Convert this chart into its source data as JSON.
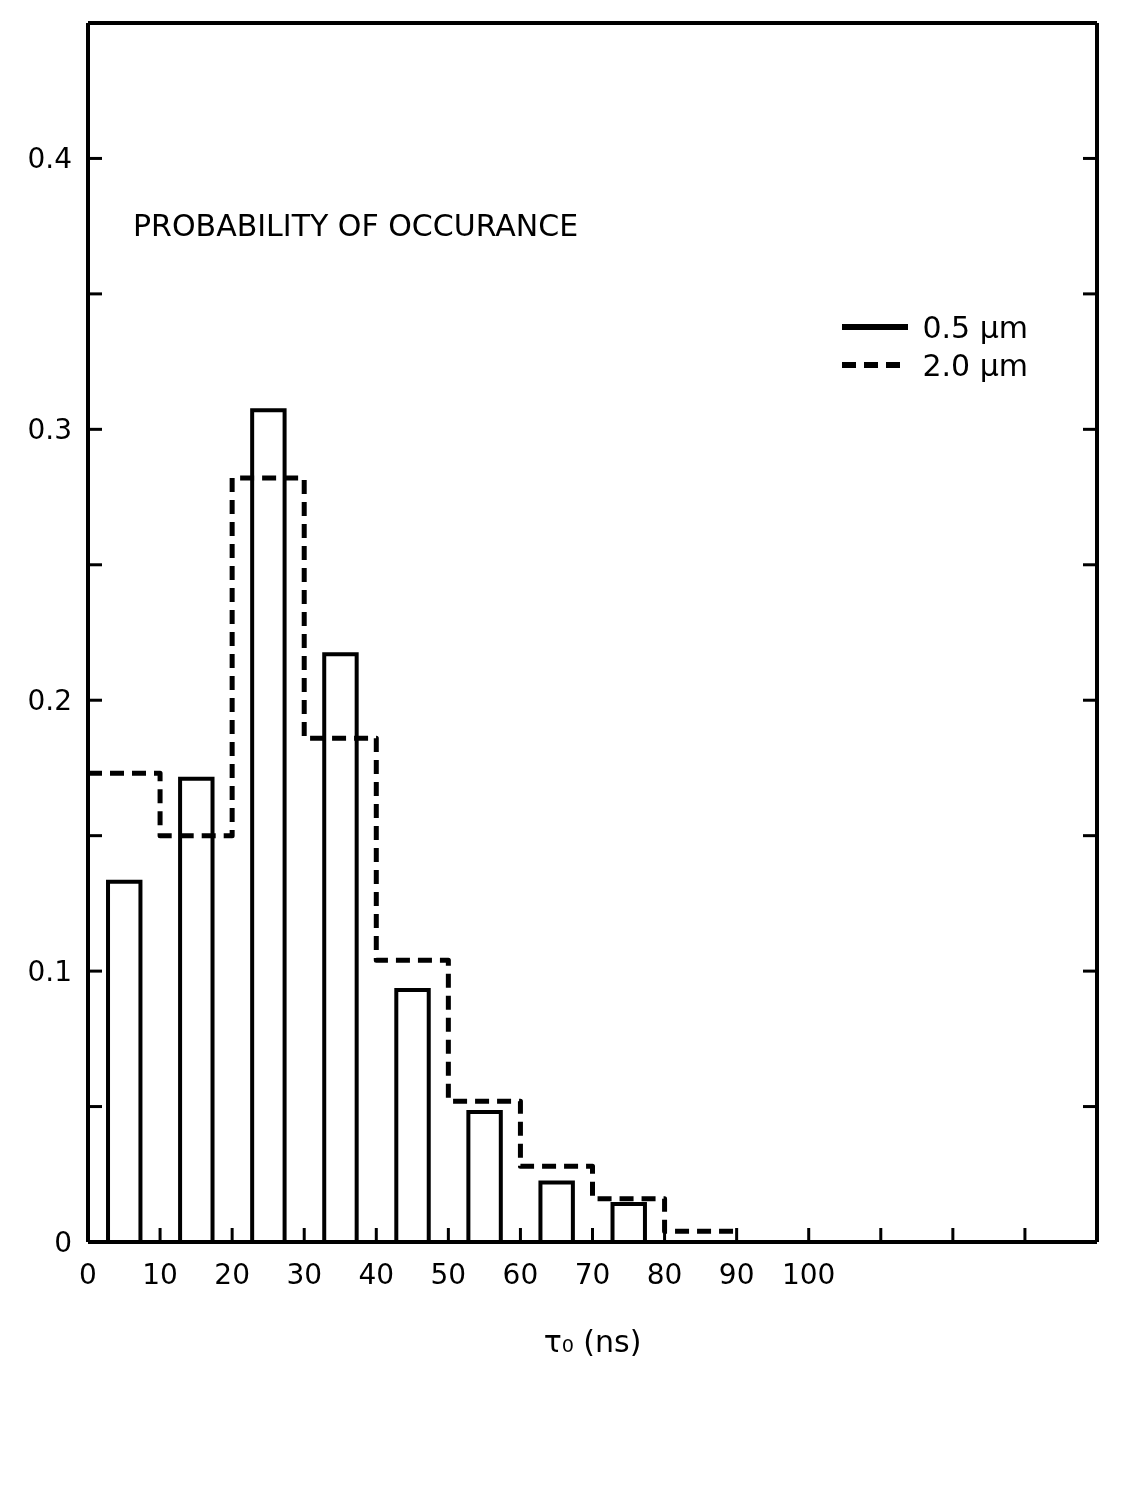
{
  "chart_data": {
    "type": "histogram",
    "ylabel": "PROBABILITY OF OCCURANCE",
    "xlabel": "τ₀ (ns)",
    "bins": [
      0,
      10,
      20,
      30,
      40,
      50,
      60,
      70,
      80,
      90
    ],
    "series": [
      {
        "name": "0.5 µm",
        "color": "#000000",
        "line_style": "solid",
        "values": [
          0.133,
          0.171,
          0.307,
          0.217,
          0.093,
          0.048,
          0.022,
          0.014,
          0
        ]
      },
      {
        "name": "2.0 µm",
        "color": "#000000",
        "line_style": "dashed",
        "values": [
          0.173,
          0.15,
          0.282,
          0.186,
          0.104,
          0.052,
          0.028,
          0.016,
          0.004
        ]
      }
    ],
    "xlim": [
      0,
      140
    ],
    "xticks": [
      0,
      10,
      20,
      30,
      40,
      50,
      60,
      70,
      80,
      90,
      100,
      {
        "value": 110,
        "label": null
      },
      {
        "value": 120,
        "label": null
      },
      {
        "value": 130,
        "label": null
      }
    ],
    "ylim": [
      0,
      0.45
    ],
    "yticks": [
      0,
      {
        "value": 0.05,
        "label": null
      },
      0.1,
      {
        "value": 0.15,
        "label": null
      },
      0.2,
      {
        "value": 0.25,
        "label": null
      },
      0.3,
      {
        "value": 0.35,
        "label": null
      },
      0.4
    ],
    "legend": "top right",
    "grid": false
  }
}
